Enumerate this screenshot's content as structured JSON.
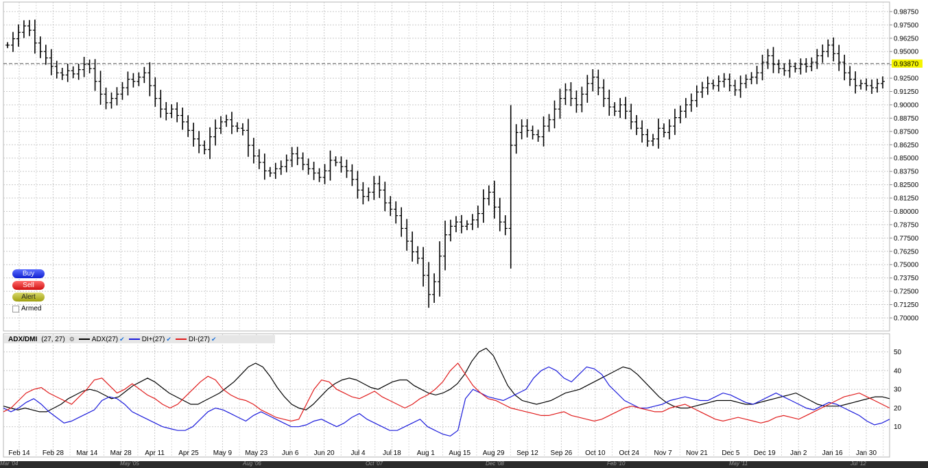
{
  "chart_data": [
    {
      "type": "ohlc",
      "y_ticks": [
        "0.98750",
        "0.97500",
        "0.96250",
        "0.95000",
        "0.93750",
        "0.92500",
        "0.91250",
        "0.90000",
        "0.88750",
        "0.87500",
        "0.86250",
        "0.85000",
        "0.83750",
        "0.82500",
        "0.81250",
        "0.80000",
        "0.78750",
        "0.77500",
        "0.76250",
        "0.75000",
        "0.73750",
        "0.72500",
        "0.71250",
        "0.70000"
      ],
      "ylim": [
        0.7,
        0.99
      ],
      "last_price_label": "0.93870",
      "last_price": 0.9387,
      "x_labels": [
        "Feb 14",
        "Feb 28",
        "Mar 14",
        "Mar 28",
        "Apr 11",
        "Apr 25",
        "May 9",
        "May 23",
        "Jun 6",
        "Jun 20",
        "Jul 4",
        "Jul 18",
        "Aug 1",
        "Aug 15",
        "Aug 29",
        "Sep 12",
        "Sep 26",
        "Oct 10",
        "Oct 24",
        "Nov 7",
        "Nov 21",
        "Dec 5",
        "Dec 19",
        "Jan 2",
        "Jan 16",
        "Jan 30"
      ],
      "closes": [
        0.956,
        0.962,
        0.968,
        0.974,
        0.97,
        0.958,
        0.95,
        0.944,
        0.936,
        0.93,
        0.928,
        0.932,
        0.929,
        0.933,
        0.938,
        0.934,
        0.922,
        0.91,
        0.902,
        0.906,
        0.91,
        0.916,
        0.924,
        0.922,
        0.926,
        0.93,
        0.918,
        0.906,
        0.896,
        0.892,
        0.896,
        0.89,
        0.884,
        0.876,
        0.868,
        0.862,
        0.858,
        0.87,
        0.878,
        0.884,
        0.886,
        0.88,
        0.878,
        0.876,
        0.862,
        0.852,
        0.846,
        0.838,
        0.836,
        0.84,
        0.842,
        0.848,
        0.854,
        0.85,
        0.844,
        0.84,
        0.836,
        0.832,
        0.838,
        0.848,
        0.846,
        0.842,
        0.838,
        0.83,
        0.82,
        0.814,
        0.818,
        0.826,
        0.82,
        0.808,
        0.802,
        0.796,
        0.784,
        0.772,
        0.762,
        0.756,
        0.74,
        0.722,
        0.734,
        0.758,
        0.778,
        0.786,
        0.79,
        0.786,
        0.788,
        0.792,
        0.798,
        0.812,
        0.818,
        0.804,
        0.79,
        0.784,
        0.862,
        0.874,
        0.88,
        0.876,
        0.872,
        0.87,
        0.88,
        0.886,
        0.896,
        0.906,
        0.914,
        0.906,
        0.9,
        0.91,
        0.92,
        0.926,
        0.916,
        0.906,
        0.898,
        0.894,
        0.9,
        0.894,
        0.884,
        0.878,
        0.872,
        0.866,
        0.868,
        0.878,
        0.874,
        0.88,
        0.888,
        0.894,
        0.9,
        0.904,
        0.912,
        0.916,
        0.92,
        0.918,
        0.922,
        0.924,
        0.918,
        0.914,
        0.92,
        0.924,
        0.926,
        0.93,
        0.94,
        0.946,
        0.938,
        0.934,
        0.932,
        0.936,
        0.934,
        0.938,
        0.936,
        0.94,
        0.946,
        0.95,
        0.956,
        0.948,
        0.94,
        0.93,
        0.924,
        0.918,
        0.92,
        0.918,
        0.916,
        0.92,
        0.922
      ]
    },
    {
      "type": "line",
      "title": "ADX/DMI",
      "params": "(27, 27)",
      "series": [
        {
          "name": "ADX(27)",
          "color": "#000000",
          "values": [
            21,
            20,
            19,
            20,
            19,
            18,
            18,
            20,
            22,
            25,
            27,
            29,
            30,
            29,
            27,
            25,
            26,
            29,
            32,
            34,
            36,
            34,
            31,
            28,
            26,
            24,
            22,
            22,
            24,
            26,
            28,
            31,
            34,
            38,
            42,
            44,
            42,
            37,
            31,
            26,
            22,
            20,
            19,
            22,
            26,
            30,
            33,
            35,
            36,
            35,
            33,
            31,
            30,
            32,
            34,
            35,
            35,
            32,
            30,
            28,
            27,
            28,
            30,
            33,
            38,
            45,
            50,
            52,
            48,
            40,
            32,
            27,
            24,
            23,
            22,
            23,
            24,
            26,
            28,
            29,
            30,
            32,
            34,
            36,
            38,
            40,
            42,
            41,
            38,
            34,
            30,
            26,
            23,
            21,
            20,
            20,
            21,
            22,
            23,
            24,
            24,
            24,
            23,
            22,
            22,
            23,
            24,
            25,
            26,
            27,
            28,
            26,
            24,
            22,
            21,
            21,
            21,
            22,
            23,
            24,
            25,
            26,
            26,
            25
          ]
        },
        {
          "name": "DI+(27)",
          "color": "#1a1adb",
          "values": [
            20,
            18,
            20,
            23,
            25,
            22,
            18,
            15,
            12,
            13,
            15,
            17,
            19,
            24,
            26,
            25,
            22,
            18,
            16,
            14,
            12,
            10,
            9,
            8,
            8,
            10,
            14,
            18,
            20,
            19,
            17,
            15,
            13,
            16,
            18,
            16,
            14,
            12,
            10,
            10,
            11,
            13,
            14,
            12,
            10,
            12,
            15,
            17,
            14,
            12,
            10,
            8,
            8,
            10,
            12,
            14,
            10,
            8,
            6,
            5,
            8,
            25,
            30,
            28,
            26,
            25,
            24,
            26,
            28,
            30,
            36,
            40,
            42,
            40,
            36,
            34,
            38,
            42,
            41,
            38,
            32,
            28,
            24,
            22,
            20,
            20,
            21,
            22,
            24,
            25,
            26,
            25,
            24,
            24,
            26,
            28,
            27,
            25,
            23,
            22,
            24,
            26,
            28,
            26,
            24,
            22,
            20,
            19,
            21,
            23,
            22,
            20,
            18,
            16,
            13,
            11,
            12,
            14
          ]
        },
        {
          "name": "DI-(27)",
          "color": "#e01a1a",
          "values": [
            18,
            20,
            24,
            28,
            30,
            31,
            28,
            26,
            24,
            22,
            26,
            30,
            35,
            36,
            32,
            28,
            30,
            33,
            30,
            27,
            25,
            22,
            20,
            22,
            26,
            30,
            34,
            37,
            35,
            30,
            27,
            25,
            24,
            22,
            19,
            17,
            15,
            14,
            13,
            14,
            22,
            30,
            35,
            34,
            30,
            28,
            26,
            25,
            27,
            29,
            26,
            24,
            22,
            20,
            22,
            25,
            27,
            30,
            34,
            40,
            44,
            38,
            32,
            28,
            25,
            24,
            22,
            20,
            19,
            18,
            17,
            16,
            16,
            17,
            18,
            16,
            15,
            14,
            13,
            14,
            16,
            18,
            20,
            21,
            20,
            19,
            18,
            18,
            20,
            21,
            22,
            20,
            18,
            16,
            14,
            13,
            14,
            15,
            14,
            13,
            12,
            13,
            15,
            16,
            15,
            14,
            16,
            18,
            20,
            22,
            24,
            26,
            27,
            28,
            26,
            24,
            22,
            20
          ]
        }
      ],
      "y_ticks": [
        "50",
        "40",
        "30",
        "20",
        "10"
      ],
      "ylim": [
        0,
        55
      ]
    }
  ],
  "panel": {
    "buy_label": "Buy",
    "sell_label": "Sell",
    "alert_label": "Alert",
    "armed_label": "Armed"
  },
  "timeline": {
    "labels": [
      "Mar '04",
      "May '05",
      "Aug '06",
      "Oct '07",
      "Dec '08",
      "Feb '10",
      "May '11",
      "Jul '12"
    ]
  }
}
